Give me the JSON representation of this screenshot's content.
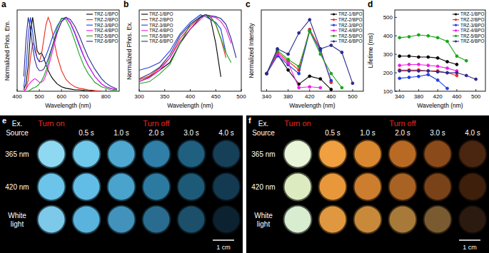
{
  "chart_data": [
    {
      "type": "line",
      "panel": "a",
      "xlabel": "Wavelength (nm)",
      "ylabel": "Normalized Phos. Em.",
      "tick_labels": "x",
      "legend": "top-right",
      "x": [
        430,
        440,
        450,
        460,
        470,
        480,
        490,
        500,
        510,
        520,
        530,
        540,
        550,
        560,
        580,
        600,
        620,
        640,
        660,
        680,
        700,
        720,
        750,
        780,
        800,
        820,
        850
      ],
      "xlim": [
        400,
        860
      ],
      "xticks": [
        400,
        500,
        600,
        700,
        800
      ],
      "ylim": [
        0,
        1.1
      ],
      "series": [
        {
          "name": "TRZ-1/BPO",
          "color": "#000000",
          "values": [
            0.02,
            0.1,
            0.35,
            0.8,
            1.0,
            0.78,
            0.55,
            0.5,
            0.52,
            0.45,
            0.36,
            0.28,
            0.22,
            0.17,
            0.1,
            0.06,
            0.04,
            0.03,
            0.02,
            0.02,
            0.01,
            0.01,
            0.0,
            null,
            null,
            null,
            null
          ]
        },
        {
          "name": "TRZ-2/BPO",
          "color": "#ee2a1b",
          "values": [
            0.0,
            0.03,
            0.15,
            0.45,
            0.65,
            0.6,
            0.45,
            0.4,
            0.5,
            0.7,
            0.9,
            1.0,
            0.92,
            0.78,
            0.48,
            0.28,
            0.16,
            0.1,
            0.06,
            0.04,
            0.03,
            0.02,
            0.01,
            0.0,
            null,
            null,
            null
          ]
        },
        {
          "name": "TRZ-3/BPO",
          "color": "#1f3fe0",
          "values": [
            0.05,
            0.3,
            0.75,
            1.0,
            0.8,
            0.55,
            0.45,
            0.4,
            0.4,
            0.42,
            0.48,
            0.56,
            0.65,
            0.74,
            0.88,
            0.98,
            1.0,
            0.92,
            0.78,
            0.62,
            0.47,
            0.35,
            0.2,
            0.1,
            0.06,
            0.04,
            0.02
          ]
        },
        {
          "name": "TRZ-4/BPO",
          "color": "#ee1ee6",
          "values": [
            0.0,
            0.03,
            0.08,
            0.12,
            0.15,
            0.17,
            0.15,
            0.12,
            0.12,
            0.15,
            0.22,
            0.32,
            0.43,
            0.55,
            0.78,
            0.95,
            1.0,
            0.93,
            0.8,
            0.64,
            0.48,
            0.35,
            0.2,
            0.1,
            0.06,
            0.04,
            0.02
          ]
        },
        {
          "name": "TRZ-5/BPO",
          "color": "#1aa51a",
          "values": [
            null,
            null,
            0.0,
            0.02,
            0.04,
            0.05,
            0.07,
            0.1,
            0.14,
            0.2,
            0.28,
            0.38,
            0.5,
            0.62,
            0.85,
            0.99,
            0.97,
            0.85,
            0.68,
            0.5,
            0.35,
            0.24,
            0.12,
            0.06,
            0.04,
            0.02,
            0.01
          ]
        },
        {
          "name": "TRZ-6/BPO",
          "color": "#2a2a8e",
          "values": [
            0.2,
            0.7,
            1.0,
            0.85,
            0.6,
            0.42,
            0.32,
            0.28,
            0.28,
            0.3,
            0.36,
            0.44,
            0.53,
            0.62,
            0.8,
            0.94,
            1.0,
            0.97,
            0.88,
            0.75,
            0.6,
            0.46,
            0.3,
            0.17,
            0.11,
            0.07,
            0.03
          ]
        }
      ]
    },
    {
      "type": "line",
      "panel": "b",
      "xlabel": "Wavelength (nm)",
      "ylabel": "Normalized Phos. Ex.",
      "tick_labels": "x",
      "legend": "top-left",
      "x": [
        300,
        320,
        340,
        360,
        380,
        400,
        420,
        430,
        440,
        450,
        460,
        470,
        480,
        490
      ],
      "xlim": [
        300,
        500
      ],
      "xticks": [
        300,
        350,
        400,
        450,
        500
      ],
      "ylim": [
        0.2,
        1.05
      ],
      "series": [
        {
          "name": "TRZ-1/BPO",
          "color": "#000000",
          "values": [
            0.3,
            0.35,
            0.42,
            0.5,
            0.7,
            0.85,
            0.97,
            1.0,
            0.95,
            0.7,
            0.35,
            null,
            null,
            null
          ]
        },
        {
          "name": "TRZ-2/BPO",
          "color": "#ee2a1b",
          "values": [
            0.32,
            0.36,
            0.44,
            0.55,
            0.75,
            0.88,
            0.98,
            1.0,
            0.98,
            0.9,
            0.75,
            0.55,
            null,
            null
          ]
        },
        {
          "name": "TRZ-3/BPO",
          "color": "#1f3fe0",
          "values": [
            0.42,
            0.45,
            0.5,
            0.62,
            0.8,
            0.92,
            1.0,
            0.98,
            0.95,
            0.92,
            0.85,
            0.6,
            null,
            null
          ]
        },
        {
          "name": "TRZ-4/BPO",
          "color": "#ee1ee6",
          "values": [
            0.3,
            0.34,
            0.42,
            0.55,
            0.72,
            0.85,
            0.95,
            1.0,
            0.98,
            0.97,
            0.93,
            0.85,
            0.7,
            null
          ]
        },
        {
          "name": "TRZ-5/BPO",
          "color": "#1aa51a",
          "values": [
            0.28,
            0.3,
            0.38,
            0.48,
            0.7,
            0.9,
            0.98,
            1.0,
            0.97,
            0.9,
            0.75,
            0.6,
            0.5,
            null
          ]
        },
        {
          "name": "TRZ-6/BPO",
          "color": "#2a2a8e",
          "values": [
            0.33,
            0.38,
            0.45,
            0.58,
            0.78,
            0.9,
            0.98,
            1.0,
            0.99,
            0.98,
            0.96,
            0.9,
            0.75,
            0.55
          ]
        }
      ]
    },
    {
      "type": "line",
      "panel": "c",
      "xlabel": "Wavelength (nm)",
      "ylabel": "Normalized Intensity",
      "tick_labels": "x",
      "legend": "top-right",
      "marker": "circle",
      "x": [
        340,
        360,
        380,
        400,
        420,
        440,
        460,
        480,
        500
      ],
      "xlim": [
        330,
        520
      ],
      "xticks": [
        340,
        380,
        420,
        460,
        500
      ],
      "ylim": [
        0,
        4.6
      ],
      "series": [
        {
          "name": "TRZ-1/BPO",
          "color": "#000000",
          "values": [
            1.0,
            2.1,
            1.2,
            0.4,
            0.85,
            0.7,
            0.1,
            null,
            null
          ]
        },
        {
          "name": "TRZ-2/BPO",
          "color": "#ee2a1b",
          "values": [
            1.0,
            2.2,
            1.7,
            1.2,
            3.5,
            2.4,
            0.5,
            null,
            null
          ]
        },
        {
          "name": "TRZ-3/BPO",
          "color": "#1f3fe0",
          "values": [
            1.0,
            2.0,
            1.5,
            1.0,
            3.4,
            2.3,
            0.6,
            null,
            null
          ]
        },
        {
          "name": "TRZ-4/BPO",
          "color": "#ee1ee6",
          "values": [
            1.0,
            2.1,
            1.6,
            0.2,
            0.25,
            0.2,
            null,
            null,
            null
          ]
        },
        {
          "name": "TRZ-5/BPO",
          "color": "#1aa51a",
          "values": [
            1.0,
            2.3,
            1.8,
            1.4,
            3.4,
            2.1,
            1.0,
            0.2,
            null
          ]
        },
        {
          "name": "TRZ-6/BPO",
          "color": "#2a2a8e",
          "values": [
            1.0,
            2.4,
            2.1,
            3.3,
            4.05,
            2.4,
            2.6,
            2.2,
            0.45
          ]
        }
      ]
    },
    {
      "type": "line",
      "panel": "d",
      "xlabel": "Wavelength (nm)",
      "ylabel": "Lifetime (ms)",
      "legend": "top-right",
      "marker": "circle",
      "x": [
        340,
        360,
        380,
        400,
        420,
        440,
        460,
        480,
        500
      ],
      "xlim": [
        330,
        520
      ],
      "xticks": [
        340,
        380,
        420,
        460,
        500
      ],
      "ylim": [
        100,
        540
      ],
      "yticks": [
        100,
        200,
        300,
        400,
        500
      ],
      "series": [
        {
          "name": "TRZ-1/BPO",
          "color": "#000000",
          "values": [
            290,
            290,
            285,
            285,
            280,
            260,
            245,
            null,
            null
          ]
        },
        {
          "name": "TRZ-2/BPO",
          "color": "#ee2a1b",
          "values": [
            215,
            215,
            215,
            210,
            210,
            200,
            185,
            null,
            null
          ]
        },
        {
          "name": "TRZ-3/BPO",
          "color": "#1f3fe0",
          "values": [
            170,
            175,
            180,
            190,
            160,
            115,
            null,
            null,
            null
          ]
        },
        {
          "name": "TRZ-4/BPO",
          "color": "#ee1ee6",
          "values": [
            240,
            245,
            245,
            240,
            235,
            225,
            210,
            null,
            null
          ]
        },
        {
          "name": "TRZ-5/BPO",
          "color": "#1aa51a",
          "values": [
            390,
            395,
            405,
            400,
            390,
            370,
            290,
            265,
            null
          ]
        },
        {
          "name": "TRZ-6/BPO",
          "color": "#2a2a8e",
          "values": [
            210,
            210,
            210,
            210,
            205,
            200,
            200,
            185,
            165
          ]
        }
      ]
    }
  ],
  "photos": [
    {
      "panel": "e",
      "source_label": "Ex. Source",
      "turn_on": "Turn on",
      "turn_off": "Turn off",
      "times": [
        "0.5 s",
        "1.0 s",
        "2.0 s",
        "3.0 s",
        "4.0 s"
      ],
      "scale_bar": "1 cm",
      "rows": [
        {
          "label": "365 nm",
          "colors": [
            "#8fd8f2",
            "#6fc8ea",
            "#4fa8d0",
            "#2f7fa8",
            "#1f5f80",
            "#163f58"
          ]
        },
        {
          "label": "420 nm",
          "colors": [
            "#6cc4ea",
            "#62bde6",
            "#4aa3cc",
            "#2d7aa0",
            "#1d5a78",
            "#133a50"
          ]
        },
        {
          "label": "White light",
          "colors": [
            "#7cc9ea",
            "#5ab3dc",
            "#4292bb",
            "#2a6c90",
            "#1b4f6a",
            "#0d2230"
          ]
        }
      ]
    },
    {
      "panel": "f",
      "source_label": "Ex. Source",
      "turn_on": "Turn on",
      "turn_off": "Turn off",
      "times": [
        "0.5 s",
        "1.0 s",
        "2.0 s",
        "3.0 s",
        "4.0 s"
      ],
      "scale_bar": "1 cm",
      "rows": [
        {
          "label": "365 nm",
          "colors": [
            "#e8f5d8",
            "#f0a040",
            "#d98830",
            "#b86a25",
            "#8a4a1a",
            "#4a2510"
          ]
        },
        {
          "label": "420 nm",
          "colors": [
            "#dcecc0",
            "#e8983a",
            "#cc7e2e",
            "#a86224",
            "#7a4218",
            "#3e1f0c"
          ]
        },
        {
          "label": "White light",
          "colors": [
            "#d8ecd0",
            "#e09840",
            "#c88a3a",
            "#a87a3a",
            "#7a5a30",
            "#2a1a10"
          ]
        }
      ]
    }
  ]
}
